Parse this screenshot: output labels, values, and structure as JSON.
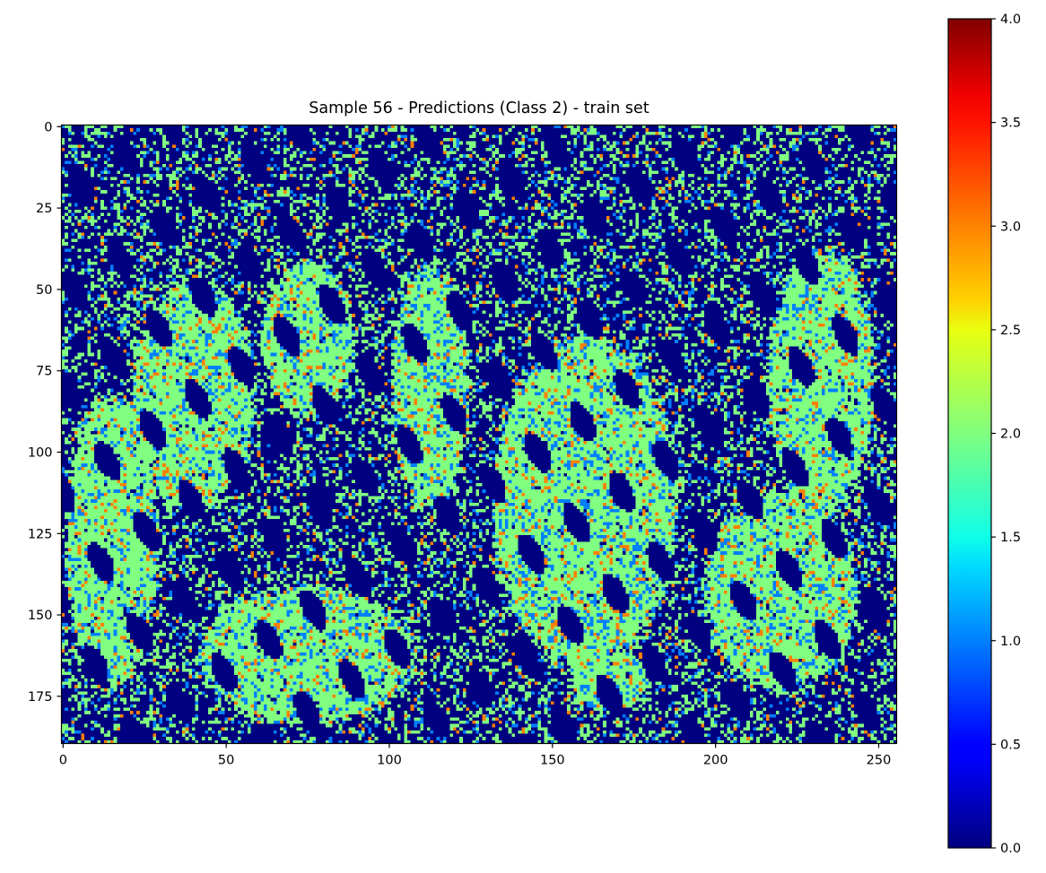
{
  "chart_data": [
    {
      "type": "heatmap",
      "title": "Sample 56 - Predictions (Class 2) - train set",
      "xlabel": "",
      "ylabel": "",
      "width": 256,
      "height": 190,
      "xlim": [
        -0.5,
        255.5
      ],
      "ylim": [
        189.5,
        -0.5
      ],
      "xticks": [
        0,
        50,
        100,
        150,
        200,
        250
      ],
      "xtick_labels": [
        "0",
        "50",
        "100",
        "150",
        "200",
        "250"
      ],
      "yticks": [
        0,
        25,
        50,
        75,
        100,
        125,
        150,
        175
      ],
      "ytick_labels": [
        "0",
        "25",
        "50",
        "75",
        "100",
        "125",
        "150",
        "175"
      ],
      "grid": false,
      "value_classes": [
        0,
        1,
        2,
        3
      ],
      "class_colors": {
        "0": "#000080",
        "1": "#0080ff",
        "2": "#80ff80",
        "3": "#ff8000"
      },
      "background_value": 0,
      "approx_regions": [
        {
          "x": [
            20,
            60
          ],
          "y": [
            45,
            120
          ]
        },
        {
          "x": [
            60,
            90
          ],
          "y": [
            40,
            90
          ]
        },
        {
          "x": [
            100,
            125
          ],
          "y": [
            40,
            120
          ]
        },
        {
          "x": [
            130,
            190
          ],
          "y": [
            60,
            170
          ]
        },
        {
          "x": [
            195,
            245
          ],
          "y": [
            110,
            175
          ]
        },
        {
          "x": [
            215,
            250
          ],
          "y": [
            35,
            120
          ]
        },
        {
          "x": [
            40,
            110
          ],
          "y": [
            140,
            185
          ]
        },
        {
          "x": [
            0,
            30
          ],
          "y": [
            80,
            175
          ]
        },
        {
          "x": [
            155,
            180
          ],
          "y": [
            160,
            180
          ]
        }
      ],
      "colorbar": {
        "colormap": "jet",
        "range": [
          0.0,
          4.0
        ],
        "ticks": [
          0.0,
          0.5,
          1.0,
          1.5,
          2.0,
          2.5,
          3.0,
          3.5,
          4.0
        ],
        "tick_labels": [
          "0.0",
          "0.5",
          "1.0",
          "1.5",
          "2.0",
          "2.5",
          "3.0",
          "3.5",
          "4.0"
        ]
      }
    }
  ]
}
